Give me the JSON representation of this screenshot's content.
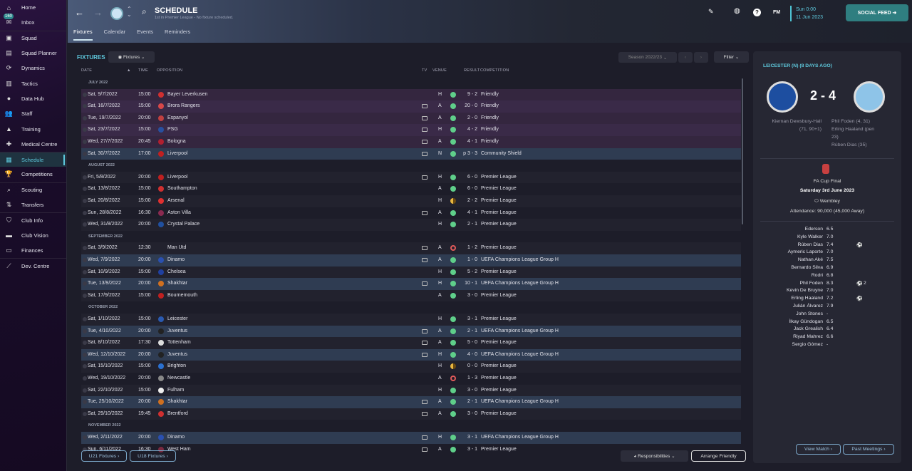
{
  "sidebar": {
    "items": [
      {
        "label": "Home",
        "icon": "home-icon",
        "glyph": "⌂"
      },
      {
        "label": "Inbox",
        "icon": "inbox-icon",
        "glyph": "✉",
        "badge": "160"
      },
      {
        "label": "Squad",
        "icon": "shirt-icon",
        "glyph": "▣",
        "sep": true
      },
      {
        "label": "Squad Planner",
        "icon": "clipboard-icon",
        "glyph": "▤"
      },
      {
        "label": "Dynamics",
        "icon": "dynamics-icon",
        "glyph": "⟳"
      },
      {
        "label": "Tactics",
        "icon": "tactics-icon",
        "glyph": "▥"
      },
      {
        "label": "Data Hub",
        "icon": "data-hub-icon",
        "glyph": "●"
      },
      {
        "label": "Staff",
        "icon": "staff-icon",
        "glyph": "👥"
      },
      {
        "label": "Training",
        "icon": "training-icon",
        "glyph": "▲"
      },
      {
        "label": "Medical Centre",
        "icon": "medical-icon",
        "glyph": "✚"
      },
      {
        "label": "Schedule",
        "icon": "calendar-icon",
        "glyph": "▦",
        "active": true,
        "sep": true
      },
      {
        "label": "Competitions",
        "icon": "trophy-icon",
        "glyph": "🏆"
      },
      {
        "label": "Scouting",
        "icon": "search-icon",
        "glyph": "⌕",
        "sep": true
      },
      {
        "label": "Transfers",
        "icon": "transfers-icon",
        "glyph": "⇅"
      },
      {
        "label": "Club Info",
        "icon": "shield-icon",
        "glyph": "⛉",
        "sep": true
      },
      {
        "label": "Club Vision",
        "icon": "briefcase-icon",
        "glyph": "▬"
      },
      {
        "label": "Finances",
        "icon": "money-icon",
        "glyph": "▭"
      },
      {
        "label": "Dev. Centre",
        "icon": "chart-icon",
        "glyph": "⟋",
        "sep": true
      }
    ]
  },
  "header": {
    "title": "SCHEDULE",
    "subtitle": "1st in Premier League - No fixture scheduled.",
    "tabs": [
      "Fixtures",
      "Calendar",
      "Events",
      "Reminders"
    ],
    "date_day": "Sun 0:00",
    "date": "11 Jun 2023",
    "social": "SOCIAL FEED",
    "fm": "FM"
  },
  "main": {
    "section": "FIXTURES",
    "view": "Fixtures",
    "season": "Season 2022/23",
    "filter": "Filter",
    "columns": {
      "date": "DATE",
      "time": "TIME",
      "opposition": "OPPOSITION",
      "tv": "TV",
      "venue": "VENUE",
      "result": "RESULT",
      "competition": "COMPETITION"
    },
    "groups": [
      {
        "month": "JULY 2022",
        "rows": [
          {
            "date": "Sat, 9/7/2022",
            "time": "15:00",
            "opp": "Bayer Leverkusen",
            "crest": "#d03030",
            "tv": false,
            "venue": "H",
            "outcome": "W",
            "result": "9 - 2",
            "comp": "Friendly"
          },
          {
            "date": "Sat, 16/7/2022",
            "time": "15:00",
            "opp": "Brora Rangers",
            "crest": "#d84848",
            "tv": true,
            "venue": "A",
            "outcome": "W",
            "result": "20 - 0",
            "comp": "Friendly"
          },
          {
            "date": "Tue, 19/7/2022",
            "time": "20:00",
            "opp": "Espanyol",
            "crest": "#c04040",
            "tv": true,
            "venue": "A",
            "outcome": "W",
            "result": "2 - 0",
            "comp": "Friendly"
          },
          {
            "date": "Sat, 23/7/2022",
            "time": "15:00",
            "opp": "PSG",
            "crest": "#2850a0",
            "tv": true,
            "venue": "H",
            "outcome": "W",
            "result": "4 - 2",
            "comp": "Friendly"
          },
          {
            "date": "Wed, 27/7/2022",
            "time": "20:45",
            "opp": "Bologna",
            "crest": "#b02030",
            "tv": true,
            "venue": "A",
            "outcome": "W",
            "result": "4 - 1",
            "comp": "Friendly"
          },
          {
            "date": "Sat, 30/7/2022",
            "time": "17:00",
            "opp": "Liverpool",
            "crest": "#c02020",
            "tv": true,
            "venue": "N",
            "outcome": "W",
            "result": "p 3 - 3",
            "comp": "Community Shield"
          }
        ]
      },
      {
        "month": "AUGUST 2022",
        "rows": [
          {
            "date": "Fri, 5/8/2022",
            "time": "20:00",
            "opp": "Liverpool",
            "crest": "#c02020",
            "tv": true,
            "venue": "H",
            "outcome": "W",
            "result": "6 - 0",
            "comp": "Premier League"
          },
          {
            "date": "Sat, 13/8/2022",
            "time": "15:00",
            "opp": "Southampton",
            "crest": "#d03030",
            "tv": false,
            "venue": "A",
            "outcome": "W",
            "result": "6 - 0",
            "comp": "Premier League"
          },
          {
            "date": "Sat, 20/8/2022",
            "time": "15:00",
            "opp": "Arsenal",
            "crest": "#e03030",
            "tv": false,
            "venue": "H",
            "outcome": "D",
            "result": "2 - 2",
            "comp": "Premier League"
          },
          {
            "date": "Sun, 28/8/2022",
            "time": "16:30",
            "opp": "Aston Villa",
            "crest": "#8a2a50",
            "tv": true,
            "venue": "A",
            "outcome": "W",
            "result": "4 - 1",
            "comp": "Premier League"
          },
          {
            "date": "Wed, 31/8/2022",
            "time": "20:00",
            "opp": "Crystal Palace",
            "crest": "#2050a0",
            "tv": false,
            "venue": "H",
            "outcome": "W",
            "result": "2 - 1",
            "comp": "Premier League"
          }
        ]
      },
      {
        "month": "SEPTEMBER 2022",
        "rows": [
          {
            "date": "Sat, 3/9/2022",
            "time": "12:30",
            "opp": "Man Utd",
            "crest": "",
            "tv": true,
            "venue": "A",
            "outcome": "L",
            "result": "1 - 2",
            "comp": "Premier League"
          },
          {
            "date": "Wed, 7/9/2022",
            "time": "20:00",
            "opp": "Dinamo",
            "crest": "#2a50b0",
            "tv": true,
            "venue": "A",
            "outcome": "W",
            "result": "1 - 0",
            "comp": "UEFA Champions League Group H"
          },
          {
            "date": "Sat, 10/9/2022",
            "time": "15:00",
            "opp": "Chelsea",
            "crest": "#2040a0",
            "tv": false,
            "venue": "H",
            "outcome": "W",
            "result": "5 - 2",
            "comp": "Premier League"
          },
          {
            "date": "Tue, 13/9/2022",
            "time": "20:00",
            "opp": "Shakhtar",
            "crest": "#d07020",
            "tv": true,
            "venue": "H",
            "outcome": "W",
            "result": "10 - 1",
            "comp": "UEFA Champions League Group H"
          },
          {
            "date": "Sat, 17/9/2022",
            "time": "15:00",
            "opp": "Bournemouth",
            "crest": "#c02020",
            "tv": false,
            "venue": "A",
            "outcome": "W",
            "result": "3 - 0",
            "comp": "Premier League"
          }
        ]
      },
      {
        "month": "OCTOBER 2022",
        "rows": [
          {
            "date": "Sat, 1/10/2022",
            "time": "15:00",
            "opp": "Leicester",
            "crest": "#2a5ab0",
            "tv": false,
            "venue": "H",
            "outcome": "W",
            "result": "3 - 1",
            "comp": "Premier League"
          },
          {
            "date": "Tue, 4/10/2022",
            "time": "20:00",
            "opp": "Juventus",
            "crest": "#222",
            "tv": true,
            "venue": "A",
            "outcome": "W",
            "result": "2 - 1",
            "comp": "UEFA Champions League Group H"
          },
          {
            "date": "Sat, 8/10/2022",
            "time": "17:30",
            "opp": "Tottenham",
            "crest": "#ddd",
            "tv": true,
            "venue": "A",
            "outcome": "W",
            "result": "5 - 0",
            "comp": "Premier League"
          },
          {
            "date": "Wed, 12/10/2022",
            "time": "20:00",
            "opp": "Juventus",
            "crest": "#222",
            "tv": true,
            "venue": "H",
            "outcome": "W",
            "result": "4 - 0",
            "comp": "UEFA Champions League Group H"
          },
          {
            "date": "Sat, 15/10/2022",
            "time": "15:00",
            "opp": "Brighton",
            "crest": "#2a70d0",
            "tv": false,
            "venue": "H",
            "outcome": "D",
            "result": "0 - 0",
            "comp": "Premier League"
          },
          {
            "date": "Wed, 19/10/2022",
            "time": "20:00",
            "opp": "Newcastle",
            "crest": "#888",
            "tv": false,
            "venue": "A",
            "outcome": "L",
            "result": "1 - 3",
            "comp": "Premier League"
          },
          {
            "date": "Sat, 22/10/2022",
            "time": "15:00",
            "opp": "Fulham",
            "crest": "#eee",
            "tv": false,
            "venue": "H",
            "outcome": "W",
            "result": "3 - 0",
            "comp": "Premier League"
          },
          {
            "date": "Tue, 25/10/2022",
            "time": "20:00",
            "opp": "Shakhtar",
            "crest": "#d07020",
            "tv": true,
            "venue": "A",
            "outcome": "W",
            "result": "2 - 1",
            "comp": "UEFA Champions League Group H"
          },
          {
            "date": "Sat, 29/10/2022",
            "time": "19:45",
            "opp": "Brentford",
            "crest": "#d03030",
            "tv": true,
            "venue": "A",
            "outcome": "W",
            "result": "3 - 0",
            "comp": "Premier League"
          }
        ]
      },
      {
        "month": "NOVEMBER 2022",
        "rows": [
          {
            "date": "Wed, 2/11/2022",
            "time": "20:00",
            "opp": "Dinamo",
            "crest": "#2a50b0",
            "tv": true,
            "venue": "H",
            "outcome": "W",
            "result": "3 - 1",
            "comp": "UEFA Champions League Group H"
          },
          {
            "date": "Sun, 6/11/2022",
            "time": "16:30",
            "opp": "West Ham",
            "crest": "#7a2a40",
            "tv": true,
            "venue": "A",
            "outcome": "W",
            "result": "3 - 1",
            "comp": "Premier League"
          }
        ]
      }
    ],
    "u21": "U21 Fixtures",
    "u18": "U18 Fixtures",
    "responsibilities": "Responsibilities",
    "arrange": "Arrange Friendly"
  },
  "match": {
    "heading": "LEICESTER (N) (8 DAYS AGO)",
    "score": "2 - 4",
    "home_scorers": [
      "Kiernan Dewsbury-Hall",
      "(71, 90+1)"
    ],
    "away_scorers": [
      "Phil Foden (4, 31)",
      "Erling Haaland (pen",
      "23)",
      "Rúben Dias (35)"
    ],
    "competition": "FA Cup Final",
    "date": "Saturday 3rd June 2023",
    "venue": "Wembley",
    "attendance": "Attendance: 90,000 (45,000 Away)",
    "players": [
      {
        "name": "Ederson",
        "rating": "6.5",
        "goals": ""
      },
      {
        "name": "Kyle Walker",
        "rating": "7.0",
        "goals": ""
      },
      {
        "name": "Rúben Dias",
        "rating": "7.4",
        "goals": "1"
      },
      {
        "name": "Aymeric Laporte",
        "rating": "7.0",
        "goals": ""
      },
      {
        "name": "Nathan Aké",
        "rating": "7.5",
        "goals": ""
      },
      {
        "name": "Bernardo Silva",
        "rating": "6.9",
        "goals": ""
      },
      {
        "name": "Rodri",
        "rating": "6.8",
        "goals": ""
      },
      {
        "name": "Phil Foden",
        "rating": "8.3",
        "goals": "2"
      },
      {
        "name": "Kevin De Bruyne",
        "rating": "7.0",
        "goals": ""
      },
      {
        "name": "Erling Haaland",
        "rating": "7.2",
        "goals": "1"
      },
      {
        "name": "Julián Álvarez",
        "rating": "7.9",
        "goals": ""
      },
      {
        "name": "John Stones",
        "rating": "-",
        "goals": ""
      },
      {
        "name": "İlkay Gündogan",
        "rating": "6.5",
        "goals": ""
      },
      {
        "name": "Jack Grealish",
        "rating": "6.4",
        "goals": ""
      },
      {
        "name": "Riyad Mahrez",
        "rating": "6.6",
        "goals": ""
      },
      {
        "name": "Sergio Gómez",
        "rating": "-",
        "goals": ""
      }
    ],
    "view_match": "View Match",
    "past_meetings": "Past Meetings"
  },
  "colors": {
    "accent": "#5ec8dc",
    "win": "#5fcf8a",
    "draw": "#e8b640",
    "loss": "#e05a5a",
    "social": "#2f7e80"
  }
}
